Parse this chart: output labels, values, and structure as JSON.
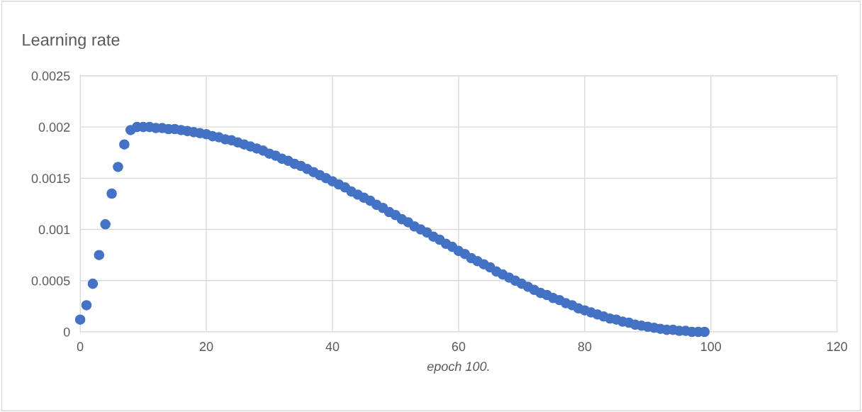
{
  "chart_data": {
    "type": "scatter",
    "title": "Learning rate",
    "xlabel": "epoch 100.",
    "x": [
      0,
      1,
      2,
      3,
      4,
      5,
      6,
      7,
      8,
      9,
      10,
      11,
      12,
      13,
      14,
      15,
      16,
      17,
      18,
      19,
      20,
      21,
      22,
      23,
      24,
      25,
      26,
      27,
      28,
      29,
      30,
      31,
      32,
      33,
      34,
      35,
      36,
      37,
      38,
      39,
      40,
      41,
      42,
      43,
      44,
      45,
      46,
      47,
      48,
      49,
      50,
      51,
      52,
      53,
      54,
      55,
      56,
      57,
      58,
      59,
      60,
      61,
      62,
      63,
      64,
      65,
      66,
      67,
      68,
      69,
      70,
      71,
      72,
      73,
      74,
      75,
      76,
      77,
      78,
      79,
      80,
      81,
      82,
      83,
      84,
      85,
      86,
      87,
      88,
      89,
      90,
      91,
      92,
      93,
      94,
      95,
      96,
      97,
      98,
      99
    ],
    "series": [
      {
        "color": "#4472c4",
        "values": [
          0.00012,
          0.00026,
          0.00047,
          0.00075,
          0.00105,
          0.00135,
          0.00161,
          0.00183,
          0.00197,
          0.002,
          0.002,
          0.002,
          0.00199,
          0.00199,
          0.00198,
          0.00198,
          0.00197,
          0.00196,
          0.00195,
          0.00194,
          0.00193,
          0.00191,
          0.0019,
          0.00188,
          0.00187,
          0.00185,
          0.00183,
          0.00181,
          0.00179,
          0.00177,
          0.00174,
          0.00172,
          0.00169,
          0.00167,
          0.00164,
          0.00162,
          0.00159,
          0.00156,
          0.00153,
          0.0015,
          0.00147,
          0.00144,
          0.00141,
          0.00137,
          0.00134,
          0.00131,
          0.00128,
          0.00124,
          0.00121,
          0.00117,
          0.00114,
          0.0011,
          0.00107,
          0.00103,
          0.001,
          0.00097,
          0.00093,
          0.0009,
          0.00086,
          0.00083,
          0.00079,
          0.00076,
          0.00072,
          0.00069,
          0.00066,
          0.00063,
          0.00059,
          0.00056,
          0.00053,
          0.0005,
          0.00047,
          0.00044,
          0.00041,
          0.00038,
          0.00036,
          0.00033,
          0.00031,
          0.00028,
          0.00026,
          0.00023,
          0.00021,
          0.00019,
          0.00017,
          0.00015,
          0.00013,
          0.00012,
          0.0001,
          9e-05,
          7e-05,
          6e-05,
          5e-05,
          4e-05,
          3e-05,
          2e-05,
          2e-05,
          1e-05,
          1e-05,
          0,
          0,
          0
        ]
      }
    ],
    "xlim": [
      0,
      120
    ],
    "xticks": [
      0,
      20,
      40,
      60,
      80,
      100,
      120
    ],
    "ylim": [
      0,
      0.0025
    ],
    "yticks": [
      0,
      0.0005,
      0.001,
      0.0015,
      0.002,
      0.0025
    ],
    "grid": true,
    "marker": "circle"
  }
}
